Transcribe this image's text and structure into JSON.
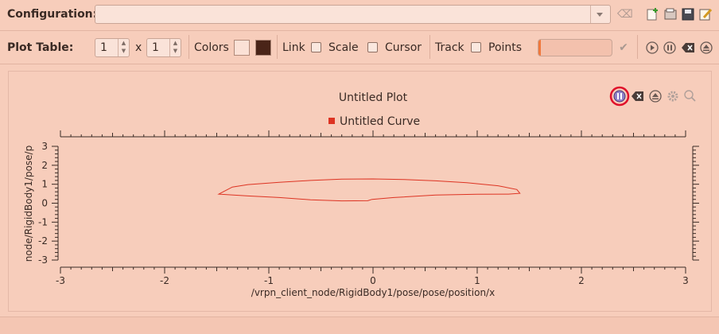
{
  "toolbar": {
    "config_label": "Configuration:",
    "config_value": ""
  },
  "plot_table": {
    "label": "Plot Table:",
    "rows": "1",
    "times": "x",
    "cols": "1",
    "colors_label": "Colors",
    "color1": "#fbe1d6",
    "color2": "#4a2418",
    "link_label": "Link",
    "scale_label": "Scale",
    "cursor_label": "Cursor",
    "track_label": "Track",
    "points_label": "Points",
    "progress": 0.03
  },
  "plot": {
    "title": "Untitled Plot",
    "legend": "Untitled Curve",
    "curve_color": "#dd3322"
  },
  "chart_data": {
    "type": "line",
    "title": "Untitled Plot",
    "xlabel": "/vrpn_client_node/RigidBody1/pose/pose/position/x",
    "ylabel": "node/RigidBody1/pose/p",
    "xlim": [
      -3,
      3
    ],
    "ylim": [
      -3,
      3
    ],
    "x_ticks": [
      "-3",
      "-2",
      "-1",
      "0",
      "1",
      "2",
      "3"
    ],
    "y_ticks": [
      "3",
      "2",
      "1",
      "0",
      "-1",
      "-2",
      "-3"
    ],
    "legend": "top-center",
    "series": [
      {
        "name": "Untitled Curve",
        "color": "#dd3322",
        "x": [
          -1.48,
          -1.35,
          -1.2,
          -0.9,
          -0.6,
          -0.3,
          0.0,
          0.3,
          0.6,
          0.9,
          1.2,
          1.38,
          1.41,
          1.3,
          1.0,
          0.6,
          0.2,
          -0.01,
          -0.05,
          -0.3,
          -0.6,
          -0.9,
          -1.2,
          -1.48
        ],
        "y": [
          0.48,
          0.85,
          0.98,
          1.1,
          1.2,
          1.27,
          1.28,
          1.25,
          1.18,
          1.08,
          0.92,
          0.72,
          0.52,
          0.48,
          0.47,
          0.43,
          0.3,
          0.2,
          0.13,
          0.12,
          0.18,
          0.3,
          0.38,
          0.48
        ]
      }
    ]
  }
}
